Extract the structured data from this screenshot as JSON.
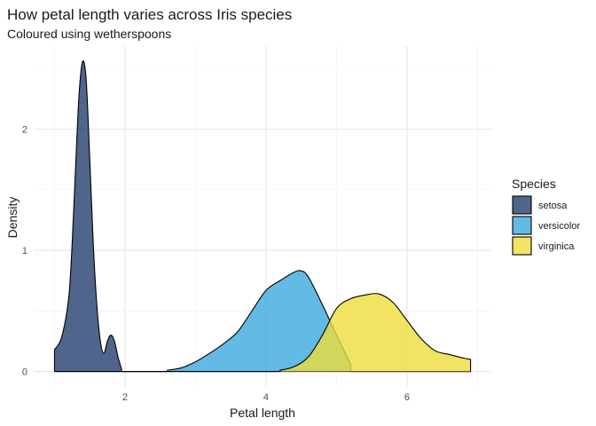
{
  "chart_data": {
    "type": "area",
    "title": "How petal length varies across Iris species",
    "subtitle": "Coloured using wetherspoons",
    "xlabel": "Petal length",
    "ylabel": "Density",
    "xlim": [
      0.705,
      7.195
    ],
    "ylim": [
      -0.128,
      2.685
    ],
    "xticks": [
      2,
      4,
      6
    ],
    "yticks": [
      0,
      1,
      2
    ],
    "grid": true,
    "legend_title": "Species",
    "legend_position": "right",
    "series": [
      {
        "name": "setosa",
        "color": "#233f6e",
        "opacity": 0.8,
        "x": [
          1.0,
          1.1,
          1.2,
          1.25,
          1.3,
          1.35,
          1.4,
          1.45,
          1.5,
          1.55,
          1.6,
          1.65,
          1.7,
          1.75,
          1.8,
          1.85,
          1.9,
          1.95
        ],
        "y": [
          0.18,
          0.28,
          0.6,
          1.05,
          1.7,
          2.3,
          2.56,
          2.4,
          1.75,
          1.05,
          0.55,
          0.25,
          0.15,
          0.25,
          0.3,
          0.25,
          0.12,
          0.02
        ]
      },
      {
        "name": "versicolor",
        "color": "#3ba9df",
        "opacity": 0.8,
        "x": [
          2.6,
          2.8,
          3.0,
          3.2,
          3.4,
          3.6,
          3.8,
          4.0,
          4.2,
          4.4,
          4.5,
          4.6,
          4.8,
          5.0,
          5.2
        ],
        "y": [
          0.01,
          0.03,
          0.08,
          0.15,
          0.23,
          0.33,
          0.5,
          0.67,
          0.75,
          0.82,
          0.83,
          0.78,
          0.55,
          0.3,
          0.06
        ]
      },
      {
        "name": "virginica",
        "color": "#eddd3b",
        "opacity": 0.8,
        "x": [
          4.2,
          4.4,
          4.6,
          4.8,
          5.0,
          5.2,
          5.4,
          5.6,
          5.8,
          6.0,
          6.2,
          6.4,
          6.6,
          6.8,
          6.9
        ],
        "y": [
          0.01,
          0.04,
          0.12,
          0.3,
          0.52,
          0.6,
          0.63,
          0.64,
          0.57,
          0.42,
          0.27,
          0.17,
          0.14,
          0.11,
          0.1
        ]
      }
    ]
  }
}
